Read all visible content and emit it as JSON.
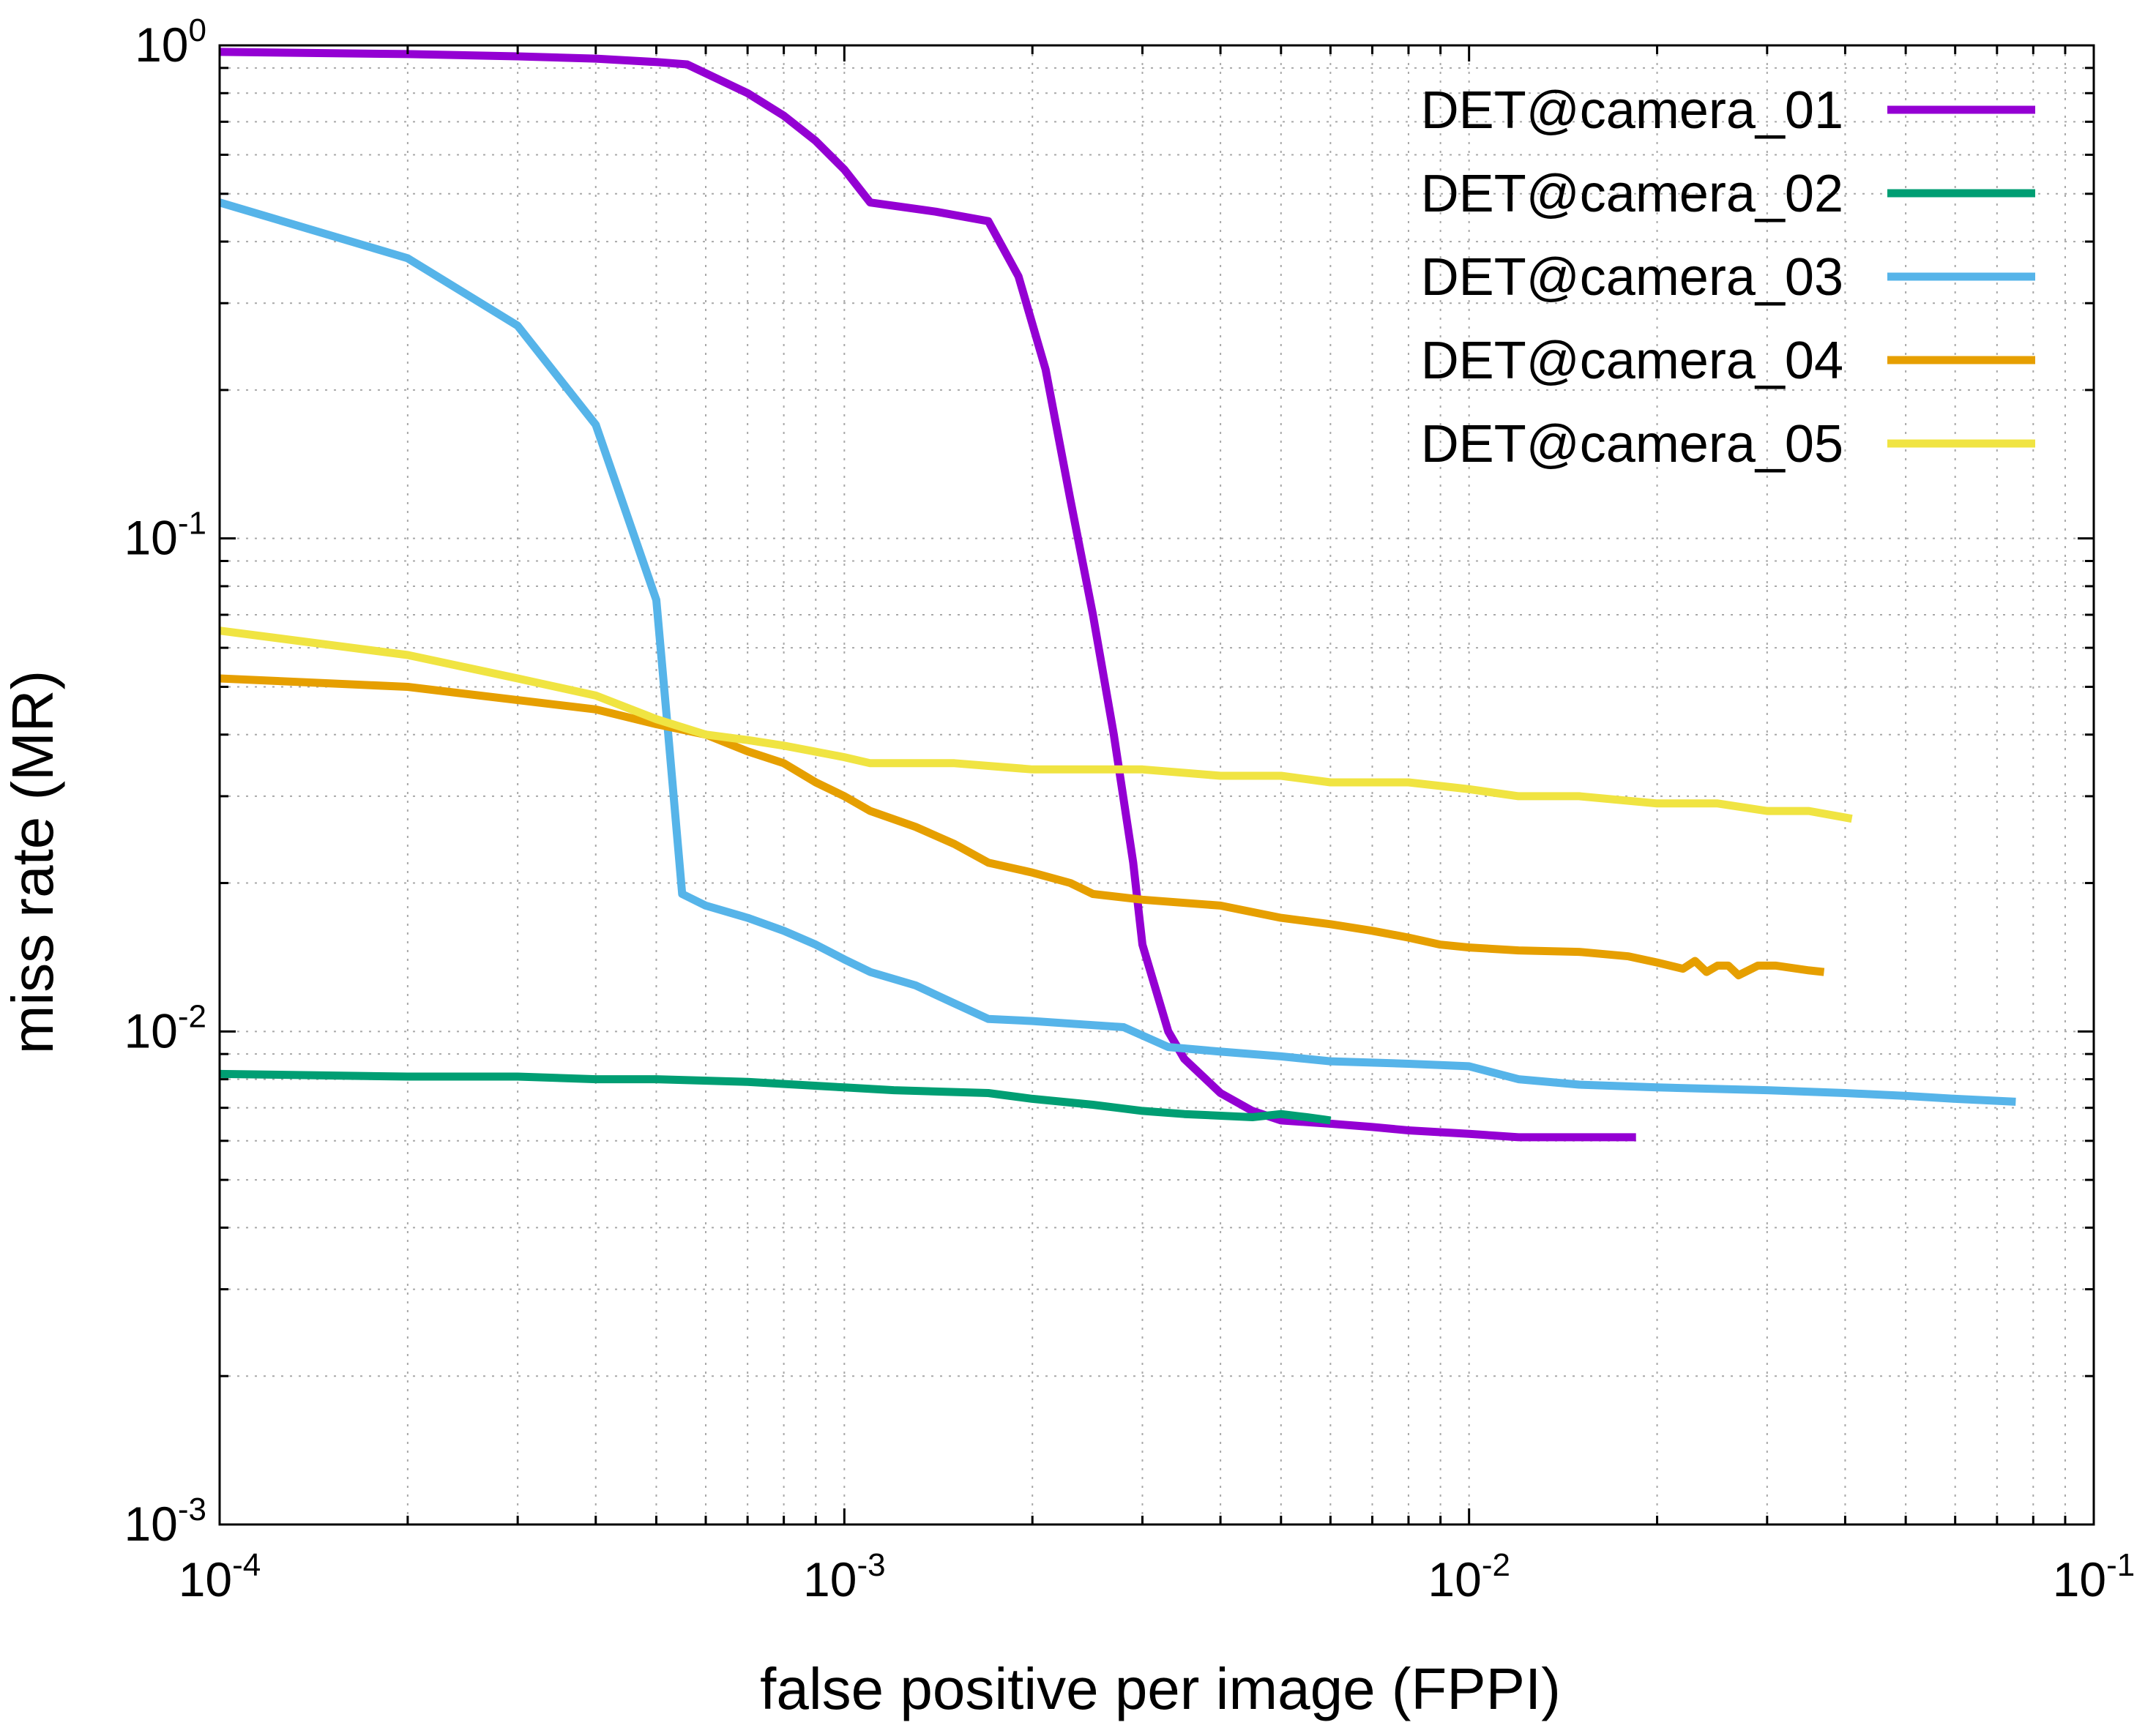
{
  "chart_data": {
    "type": "line",
    "title": "",
    "xlabel": "false positive per image (FPPI)",
    "ylabel": "miss rate (MR)",
    "xscale": "log",
    "yscale": "log",
    "xlim": [
      0.0001,
      0.1
    ],
    "ylim": [
      0.001,
      1
    ],
    "grid": true,
    "legend_position": "top-right",
    "x_ticks": [
      {
        "base": "10",
        "exp": "-4"
      },
      {
        "base": "10",
        "exp": "-3"
      },
      {
        "base": "10",
        "exp": "-2"
      },
      {
        "base": "10",
        "exp": "-1"
      }
    ],
    "y_ticks": [
      {
        "base": "10",
        "exp": "-3"
      },
      {
        "base": "10",
        "exp": "-2"
      },
      {
        "base": "10",
        "exp": "-1"
      },
      {
        "base": "10",
        "exp": "0"
      }
    ],
    "series": [
      {
        "name": "DET@camera_01",
        "color": "#9400d3",
        "x": [
          0.0001,
          0.0002,
          0.0003,
          0.0004,
          0.0005,
          0.00056,
          0.0007,
          0.0008,
          0.0009,
          0.001,
          0.0011,
          0.0014,
          0.0017,
          0.0019,
          0.0021,
          0.0023,
          0.0025,
          0.0027,
          0.0029,
          0.003,
          0.0033,
          0.0035,
          0.004,
          0.0045,
          0.005,
          0.006,
          0.007,
          0.008,
          0.01,
          0.012,
          0.014,
          0.016,
          0.0185
        ],
        "y": [
          0.97,
          0.96,
          0.95,
          0.94,
          0.925,
          0.915,
          0.8,
          0.72,
          0.64,
          0.56,
          0.48,
          0.46,
          0.44,
          0.34,
          0.22,
          0.12,
          0.07,
          0.04,
          0.022,
          0.015,
          0.01,
          0.0088,
          0.0075,
          0.0069,
          0.0066,
          0.0065,
          0.0064,
          0.0063,
          0.0062,
          0.0061,
          0.0061,
          0.0061,
          0.0061
        ]
      },
      {
        "name": "DET@camera_02",
        "color": "#009e73",
        "x": [
          0.0001,
          0.0002,
          0.0003,
          0.0004,
          0.0005,
          0.0007,
          0.001,
          0.0012,
          0.0017,
          0.002,
          0.0025,
          0.003,
          0.0035,
          0.0045,
          0.005,
          0.0055,
          0.006
        ],
        "y": [
          0.0082,
          0.0081,
          0.0081,
          0.008,
          0.008,
          0.0079,
          0.0077,
          0.0076,
          0.0075,
          0.0073,
          0.0071,
          0.0069,
          0.0068,
          0.0067,
          0.0068,
          0.0067,
          0.0066
        ]
      },
      {
        "name": "DET@camera_03",
        "color": "#56b4e9",
        "x": [
          0.0001,
          0.0002,
          0.0003,
          0.0004,
          0.0005,
          0.00052,
          0.00055,
          0.0006,
          0.0007,
          0.0008,
          0.0009,
          0.001,
          0.0011,
          0.0013,
          0.0015,
          0.0017,
          0.002,
          0.0025,
          0.0028,
          0.0033,
          0.004,
          0.005,
          0.006,
          0.008,
          0.01,
          0.012,
          0.015,
          0.02,
          0.03,
          0.04,
          0.05,
          0.06,
          0.075
        ],
        "y": [
          0.48,
          0.37,
          0.27,
          0.17,
          0.075,
          0.043,
          0.019,
          0.018,
          0.017,
          0.016,
          0.015,
          0.014,
          0.0132,
          0.0124,
          0.0114,
          0.0106,
          0.0105,
          0.0103,
          0.0102,
          0.0093,
          0.0091,
          0.0089,
          0.0087,
          0.0086,
          0.0085,
          0.008,
          0.0078,
          0.0077,
          0.0076,
          0.0075,
          0.0074,
          0.0073,
          0.0072
        ]
      },
      {
        "name": "DET@camera_04",
        "color": "#e69f00",
        "x": [
          0.0001,
          0.0002,
          0.0003,
          0.0004,
          0.0005,
          0.0006,
          0.0007,
          0.0008,
          0.0009,
          0.001,
          0.0011,
          0.0013,
          0.0015,
          0.0017,
          0.002,
          0.0023,
          0.0025,
          0.003,
          0.004,
          0.005,
          0.006,
          0.007,
          0.008,
          0.009,
          0.01,
          0.012,
          0.015,
          0.018,
          0.02,
          0.022,
          0.023,
          0.024,
          0.025,
          0.026,
          0.027,
          0.029,
          0.031,
          0.035,
          0.037
        ],
        "y": [
          0.052,
          0.05,
          0.047,
          0.045,
          0.042,
          0.04,
          0.037,
          0.035,
          0.032,
          0.03,
          0.028,
          0.026,
          0.024,
          0.022,
          0.021,
          0.02,
          0.019,
          0.0185,
          0.018,
          0.017,
          0.0165,
          0.016,
          0.0155,
          0.015,
          0.0148,
          0.0146,
          0.0145,
          0.0142,
          0.0138,
          0.0134,
          0.0139,
          0.0132,
          0.0136,
          0.0136,
          0.013,
          0.0136,
          0.0136,
          0.0133,
          0.0132
        ]
      },
      {
        "name": "DET@camera_05",
        "color": "#f0e442",
        "x": [
          0.0001,
          0.0002,
          0.0003,
          0.0004,
          0.0005,
          0.0006,
          0.0007,
          0.0008,
          0.001,
          0.0011,
          0.0015,
          0.002,
          0.003,
          0.004,
          0.005,
          0.006,
          0.008,
          0.01,
          0.012,
          0.015,
          0.02,
          0.025,
          0.03,
          0.035,
          0.041
        ],
        "y": [
          0.065,
          0.058,
          0.052,
          0.048,
          0.043,
          0.04,
          0.039,
          0.038,
          0.036,
          0.035,
          0.035,
          0.034,
          0.034,
          0.033,
          0.033,
          0.032,
          0.032,
          0.031,
          0.03,
          0.03,
          0.029,
          0.029,
          0.028,
          0.028,
          0.027
        ]
      }
    ]
  }
}
